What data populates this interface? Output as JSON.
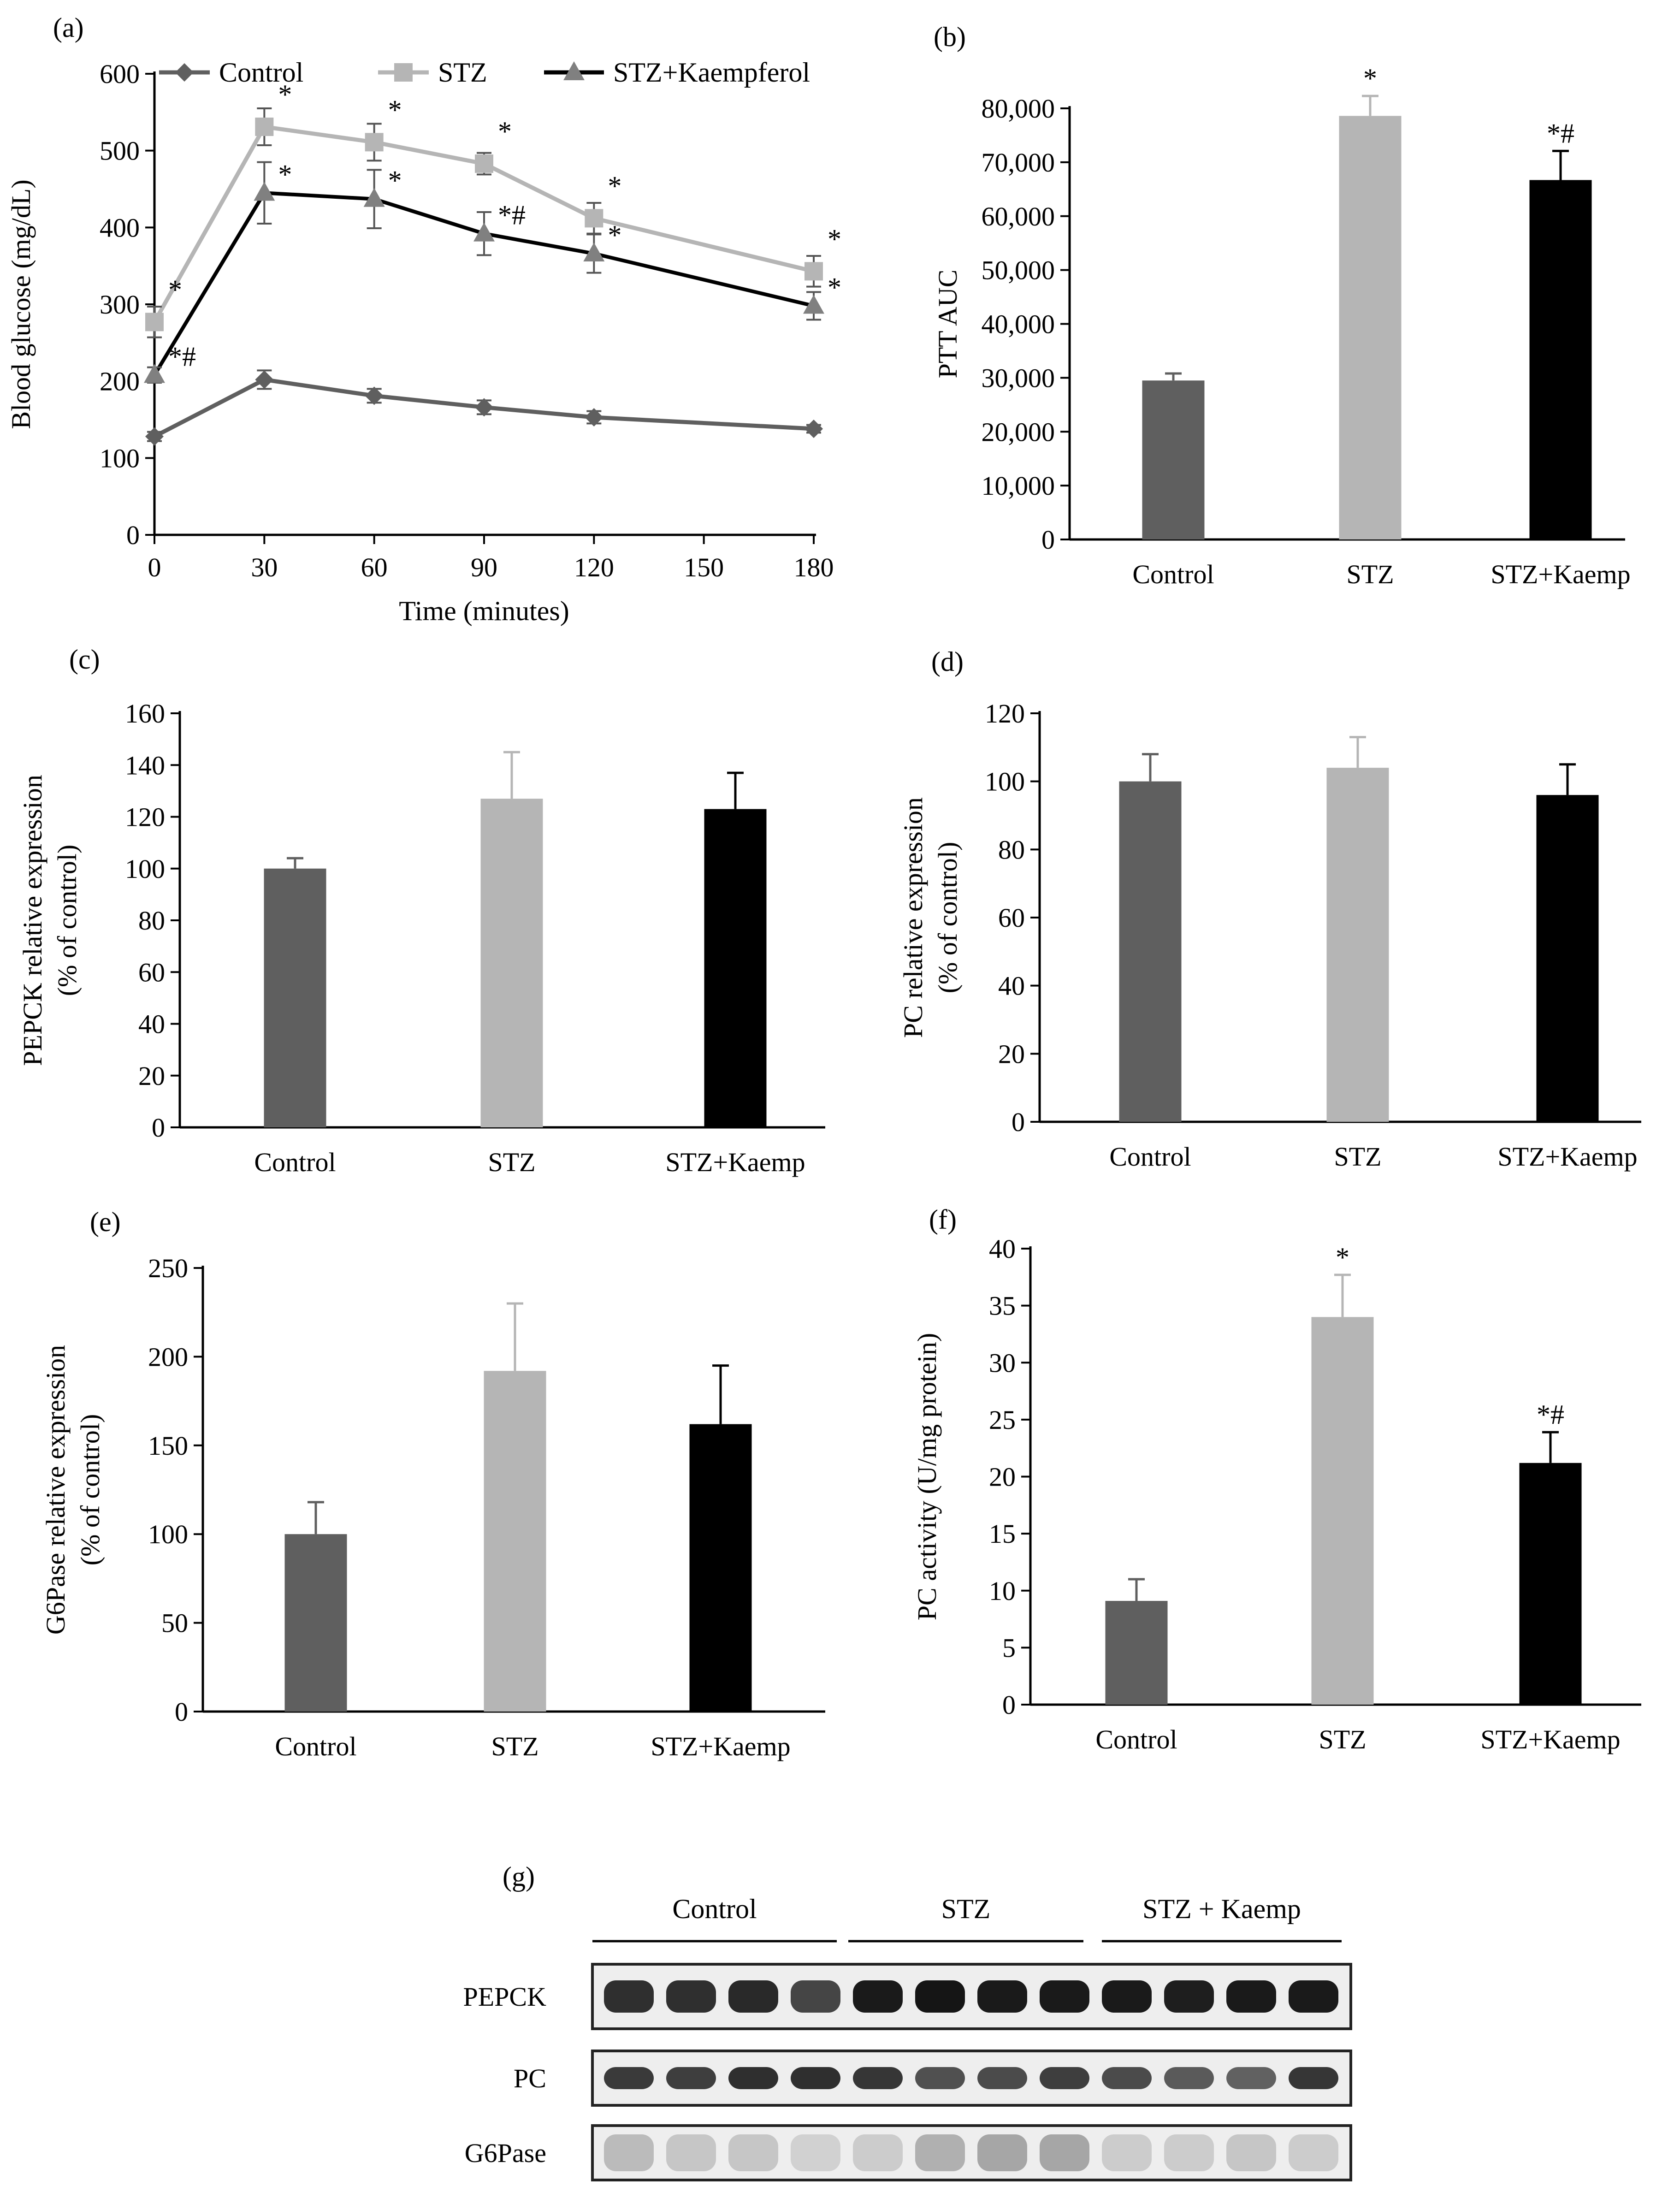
{
  "figure": {
    "colors": {
      "control": "#5f5f5f",
      "stz": "#b5b5b5",
      "kaemp": "#000000",
      "axis": "#000000"
    }
  },
  "chart_data": [
    {
      "id": "a",
      "panel_label": "(a)",
      "type": "line",
      "title": "",
      "xlabel": "Time (minutes)",
      "ylabel": "Blood glucose (mg/dL)",
      "xlim": [
        0,
        180
      ],
      "ylim": [
        0,
        600
      ],
      "xticks": [
        0,
        30,
        60,
        90,
        120,
        150,
        180
      ],
      "xtick_labels": [
        "0",
        "30",
        "60",
        "90",
        "120",
        "150",
        "180"
      ],
      "yticks": [
        0,
        100,
        200,
        300,
        400,
        500,
        600
      ],
      "ytick_labels": [
        "0",
        "100",
        "200",
        "300",
        "400",
        "500",
        "600"
      ],
      "legend_position": "top",
      "series": [
        {
          "name": "Control",
          "key": "control",
          "marker": "diamond",
          "x": [
            0,
            30,
            60,
            90,
            120,
            180
          ],
          "y": [
            128,
            202,
            181,
            166,
            153,
            138
          ],
          "err": [
            6,
            12,
            9,
            9,
            8,
            5
          ],
          "annotations": [
            "",
            "",
            "",
            "",
            "",
            ""
          ]
        },
        {
          "name": "STZ",
          "key": "stz",
          "marker": "square",
          "x": [
            0,
            30,
            60,
            90,
            120,
            180
          ],
          "y": [
            277,
            531,
            511,
            483,
            412,
            343
          ],
          "err": [
            20,
            24,
            24,
            14,
            20,
            20
          ],
          "annotations": [
            "*",
            "*",
            "*",
            "*",
            "*",
            "*"
          ]
        },
        {
          "name": "STZ+Kaempferol",
          "key": "kaemp",
          "marker": "triangle",
          "x": [
            0,
            30,
            60,
            90,
            120,
            180
          ],
          "y": [
            208,
            445,
            437,
            392,
            366,
            298
          ],
          "err": [
            10,
            40,
            38,
            28,
            25,
            18
          ],
          "annotations": [
            "*#",
            "*",
            "*",
            "*#",
            "*",
            "*"
          ]
        }
      ]
    },
    {
      "id": "b",
      "panel_label": "(b)",
      "type": "bar",
      "ylabel": "PTT AUC",
      "xlabel": "",
      "categories": [
        "Control",
        "STZ",
        "STZ+Kaemp"
      ],
      "keys": [
        "control",
        "stz",
        "kaemp"
      ],
      "values": [
        29500,
        78600,
        66700
      ],
      "err": [
        1300,
        3700,
        5400
      ],
      "annotations": [
        "",
        "*",
        "*#"
      ],
      "ylim": [
        0,
        80000
      ],
      "yticks": [
        0,
        10000,
        20000,
        30000,
        40000,
        50000,
        60000,
        70000,
        80000
      ],
      "ytick_labels": [
        "0",
        "10,000",
        "20,000",
        "30,000",
        "40,000",
        "50,000",
        "60,000",
        "70,000",
        "80,000"
      ]
    },
    {
      "id": "c",
      "panel_label": "(c)",
      "type": "bar",
      "ylabel": "PEPCK  relative expression",
      "ylabel2": "(% of control)",
      "xlabel": "",
      "categories": [
        "Control",
        "STZ",
        "STZ+Kaemp"
      ],
      "keys": [
        "control",
        "stz",
        "kaemp"
      ],
      "values": [
        100,
        127,
        123
      ],
      "err": [
        4,
        18,
        14
      ],
      "annotations": [
        "",
        "",
        ""
      ],
      "ylim": [
        0,
        160
      ],
      "yticks": [
        0,
        20,
        40,
        60,
        80,
        100,
        120,
        140,
        160
      ],
      "ytick_labels": [
        "0",
        "20",
        "40",
        "60",
        "80",
        "100",
        "120",
        "140",
        "160"
      ]
    },
    {
      "id": "d",
      "panel_label": "(d)",
      "type": "bar",
      "ylabel": "PC relative expression",
      "ylabel2": "(% of control)",
      "xlabel": "",
      "categories": [
        "Control",
        "STZ",
        "STZ+Kaemp"
      ],
      "keys": [
        "control",
        "stz",
        "kaemp"
      ],
      "values": [
        100,
        104,
        96
      ],
      "err": [
        8,
        9,
        9
      ],
      "annotations": [
        "",
        "",
        ""
      ],
      "ylim": [
        0,
        120
      ],
      "yticks": [
        0,
        20,
        40,
        60,
        80,
        100,
        120
      ],
      "ytick_labels": [
        "0",
        "20",
        "40",
        "60",
        "80",
        "100",
        "120"
      ]
    },
    {
      "id": "e",
      "panel_label": "(e)",
      "type": "bar",
      "ylabel": "G6Pase relative expression",
      "ylabel2": "(% of control)",
      "xlabel": "",
      "categories": [
        "Control",
        "STZ",
        "STZ+Kaemp"
      ],
      "keys": [
        "control",
        "stz",
        "kaemp"
      ],
      "values": [
        100,
        192,
        162
      ],
      "err": [
        18,
        38,
        33
      ],
      "annotations": [
        "",
        "",
        ""
      ],
      "ylim": [
        0,
        250
      ],
      "yticks": [
        0,
        50,
        100,
        150,
        200,
        250
      ],
      "ytick_labels": [
        "0",
        "50",
        "100",
        "150",
        "200",
        "250"
      ]
    },
    {
      "id": "f",
      "panel_label": "(f)",
      "type": "bar",
      "ylabel": "PC activity (U/mg protein)",
      "xlabel": "",
      "categories": [
        "Control",
        "STZ",
        "STZ+Kaemp"
      ],
      "keys": [
        "control",
        "stz",
        "kaemp"
      ],
      "values": [
        9.1,
        34.0,
        21.2
      ],
      "err": [
        1.9,
        3.7,
        2.7
      ],
      "annotations": [
        "",
        "*",
        "*#"
      ],
      "ylim": [
        0,
        40
      ],
      "yticks": [
        0,
        5,
        10,
        15,
        20,
        25,
        30,
        35,
        40
      ],
      "ytick_labels": [
        "0",
        "5",
        "10",
        "15",
        "20",
        "25",
        "30",
        "35",
        "40"
      ]
    }
  ],
  "blot": {
    "panel_label": "(g)",
    "groups": [
      "Control",
      "STZ",
      "STZ + Kaemp"
    ],
    "rows": [
      {
        "label": "PEPCK",
        "intensity": [
          0.85,
          0.85,
          0.88,
          0.75,
          0.95,
          0.97,
          0.95,
          0.95,
          0.95,
          0.93,
          0.95,
          0.95
        ]
      },
      {
        "label": "PC",
        "intensity": [
          0.8,
          0.78,
          0.85,
          0.85,
          0.82,
          0.7,
          0.72,
          0.78,
          0.72,
          0.65,
          0.62,
          0.82
        ]
      },
      {
        "label": "G6Pase",
        "intensity": [
          0.2,
          0.15,
          0.15,
          0.1,
          0.12,
          0.25,
          0.3,
          0.3,
          0.12,
          0.12,
          0.15,
          0.12
        ]
      }
    ]
  }
}
